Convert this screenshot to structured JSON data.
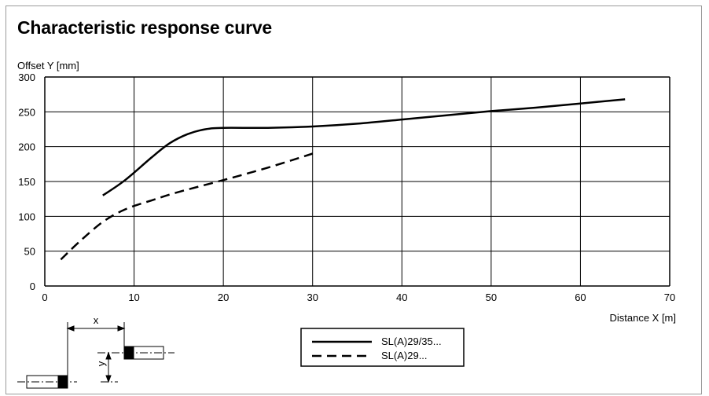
{
  "title": "Characteristic response curve",
  "chart_data": {
    "type": "line",
    "ylabel": "Offset Y [mm]",
    "xlabel": "Distance X [m]",
    "xlim": [
      0,
      70
    ],
    "ylim": [
      0,
      300
    ],
    "x_ticks": [
      0,
      10,
      20,
      30,
      40,
      50,
      60,
      70
    ],
    "y_ticks": [
      0,
      50,
      100,
      150,
      200,
      250,
      300
    ],
    "grid": true,
    "legend_position": "bottom-center",
    "series": [
      {
        "name": "SL(A)29/35...",
        "style": "solid",
        "points": [
          [
            6.5,
            130
          ],
          [
            9,
            152
          ],
          [
            12,
            185
          ],
          [
            14,
            205
          ],
          [
            16,
            218
          ],
          [
            18,
            225
          ],
          [
            20,
            227
          ],
          [
            25,
            227
          ],
          [
            30,
            229
          ],
          [
            35,
            233
          ],
          [
            40,
            239
          ],
          [
            45,
            245
          ],
          [
            50,
            251
          ],
          [
            55,
            256
          ],
          [
            60,
            262
          ],
          [
            65,
            268
          ]
        ]
      },
      {
        "name": "SL(A)29...",
        "style": "dashed",
        "points": [
          [
            1.8,
            38
          ],
          [
            4,
            65
          ],
          [
            6.5,
            92
          ],
          [
            9,
            110
          ],
          [
            12,
            123
          ],
          [
            15,
            135
          ],
          [
            20,
            152
          ],
          [
            25,
            170
          ],
          [
            30,
            190
          ]
        ]
      }
    ]
  },
  "diagram": {
    "x_label": "x",
    "y_label": "y"
  },
  "colors": {
    "line": "#000000",
    "grid": "#000000",
    "frame": "#9a9a9a"
  }
}
